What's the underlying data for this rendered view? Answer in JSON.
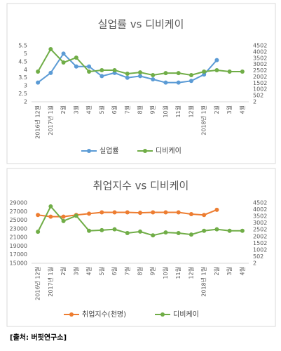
{
  "chart_data": [
    {
      "type": "line",
      "title": "실업률 vs 디비케이",
      "categories": [
        "2016년 12월",
        "2017년 1월",
        "2월",
        "3월",
        "4월",
        "5월",
        "6월",
        "7월",
        "8월",
        "9월",
        "10월",
        "11월",
        "12월",
        "2018년 1월",
        "2월",
        "3월",
        "4월"
      ],
      "series": [
        {
          "name": "실업률",
          "color": "#5b9bd5",
          "values": [
            3.2,
            3.8,
            5.0,
            4.2,
            4.2,
            3.6,
            3.8,
            3.5,
            3.6,
            3.4,
            3.2,
            3.2,
            3.3,
            3.7,
            4.6,
            null,
            null
          ]
        },
        {
          "name": "디비케이",
          "color": "#70ad47",
          "axis": "y2",
          "values": [
            2420,
            4220,
            3150,
            3540,
            2420,
            2530,
            2530,
            2250,
            2360,
            2140,
            2300,
            2300,
            2140,
            2420,
            2530,
            2420,
            2420
          ]
        }
      ],
      "ylim": [
        2,
        5.5
      ],
      "yticks": [
        2,
        2.5,
        3,
        3.5,
        4,
        4.5,
        5,
        5.5
      ],
      "y2lim": [
        2,
        4502
      ],
      "y2ticks": [
        2,
        502,
        1002,
        1502,
        2002,
        2502,
        3002,
        3502,
        4002,
        4502
      ],
      "legend": "bottom"
    },
    {
      "type": "line",
      "title": "취업지수 vs 디비케이",
      "categories": [
        "2016년 12월",
        "2017년 1월",
        "2월",
        "3월",
        "4월",
        "5월",
        "6월",
        "7월",
        "8월",
        "9월",
        "10월",
        "11월",
        "12월",
        "2018년 1월",
        "2월",
        "3월",
        "4월"
      ],
      "series": [
        {
          "name": "취업지수(천명)",
          "color": "#ed7d31",
          "values": [
            26200,
            25800,
            25800,
            26200,
            26500,
            26800,
            26800,
            26800,
            26700,
            26800,
            26800,
            26800,
            26400,
            26200,
            27400,
            null,
            null
          ]
        },
        {
          "name": "디비케이",
          "color": "#70ad47",
          "axis": "y2",
          "values": [
            2350,
            4240,
            3150,
            3540,
            2420,
            2470,
            2530,
            2250,
            2360,
            2080,
            2300,
            2250,
            2140,
            2420,
            2530,
            2420,
            2420
          ]
        }
      ],
      "ylim": [
        15000,
        29000
      ],
      "yticks": [
        15000,
        17000,
        19000,
        21000,
        23000,
        25000,
        27000,
        29000
      ],
      "y2lim": [
        2,
        4502
      ],
      "y2ticks": [
        2,
        502,
        1002,
        1502,
        2002,
        2502,
        3002,
        3502,
        4002,
        4502
      ],
      "legend": "bottom"
    }
  ],
  "source": "[출처: 버핏연구소]"
}
